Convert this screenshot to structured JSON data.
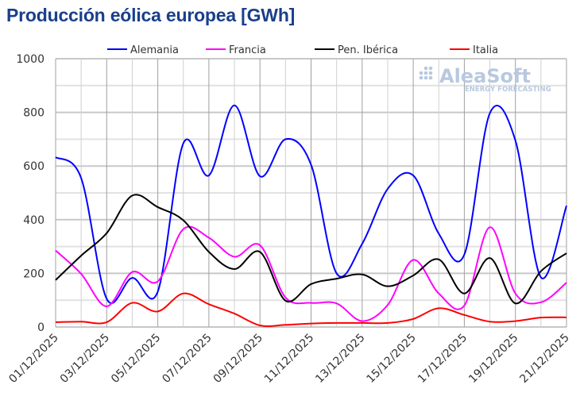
{
  "chart_data": {
    "type": "line",
    "title": "Producción eólica europea [GWh]",
    "xlabel": "",
    "ylabel": "",
    "ylim": [
      0,
      1000
    ],
    "yticks": [
      0,
      200,
      400,
      600,
      800,
      1000
    ],
    "grid": true,
    "legend_position": "top",
    "x": [
      "01/12/2025",
      "02/12/2025",
      "03/12/2025",
      "04/12/2025",
      "05/12/2025",
      "06/12/2025",
      "07/12/2025",
      "08/12/2025",
      "09/12/2025",
      "10/12/2025",
      "11/12/2025",
      "12/12/2025",
      "13/12/2025",
      "14/12/2025",
      "15/12/2025",
      "16/12/2025",
      "17/12/2025",
      "18/12/2025",
      "19/12/2025",
      "20/12/2025",
      "21/12/2025"
    ],
    "xtick_labels": [
      "01/12/2025",
      "03/12/2025",
      "05/12/2025",
      "07/12/2025",
      "09/12/2025",
      "11/12/2025",
      "13/12/2025",
      "15/12/2025",
      "17/12/2025",
      "19/12/2025",
      "21/12/2025"
    ],
    "series": [
      {
        "name": "Alemania",
        "color": "#0000ff",
        "values": [
          633,
          555,
          105,
          183,
          132,
          685,
          565,
          826,
          562,
          700,
          605,
          200,
          310,
          515,
          565,
          348,
          270,
          797,
          695,
          185,
          452
        ]
      },
      {
        "name": "Francia",
        "color": "#ff00ff",
        "values": [
          285,
          198,
          77,
          205,
          170,
          365,
          333,
          262,
          305,
          110,
          90,
          88,
          22,
          82,
          250,
          125,
          80,
          372,
          125,
          92,
          165
        ]
      },
      {
        "name": "Pen. Ibérica",
        "color": "#000000",
        "values": [
          175,
          266,
          350,
          490,
          447,
          398,
          280,
          216,
          280,
          98,
          160,
          180,
          196,
          152,
          192,
          252,
          125,
          257,
          88,
          208,
          275
        ]
      },
      {
        "name": "Italia",
        "color": "#ff0000",
        "values": [
          18,
          20,
          18,
          90,
          58,
          125,
          85,
          50,
          6,
          8,
          13,
          15,
          15,
          15,
          30,
          70,
          45,
          20,
          22,
          35,
          36
        ]
      }
    ]
  },
  "watermark": {
    "brand": "AleaSoft",
    "tagline": "ENERGY FORECASTING"
  }
}
